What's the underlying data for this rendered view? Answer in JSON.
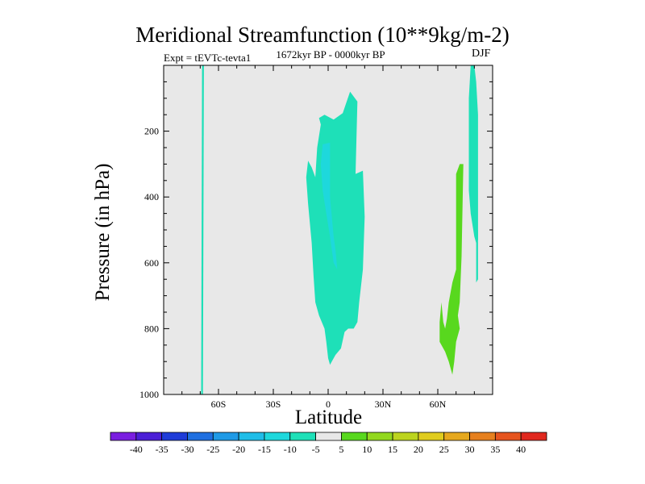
{
  "chart_data": {
    "type": "contour",
    "title": "Meridional Streamfunction (10**9kg/m-2)",
    "subtitle": "1672kyr BP - 0000kyr BP",
    "experiment": "Expt = tEVTc-tevta1",
    "season": "DJF",
    "xlabel": "Latitude",
    "ylabel": "Pressure (in hPa)",
    "xlim": [
      -90,
      90
    ],
    "ylim": [
      1000,
      0
    ],
    "x_ticks": [
      {
        "value": -60,
        "label": "60S"
      },
      {
        "value": -30,
        "label": "30S"
      },
      {
        "value": 0,
        "label": "0"
      },
      {
        "value": 30,
        "label": "30N"
      },
      {
        "value": 60,
        "label": "60N"
      }
    ],
    "y_ticks": [
      {
        "value": 200,
        "label": "200"
      },
      {
        "value": 400,
        "label": "400"
      },
      {
        "value": 600,
        "label": "600"
      },
      {
        "value": 800,
        "label": "800"
      },
      {
        "value": 1000,
        "label": "1000"
      }
    ],
    "colorbar": {
      "levels": [
        -40,
        -35,
        -30,
        -25,
        -20,
        -15,
        -10,
        -5,
        5,
        10,
        15,
        20,
        25,
        30,
        35,
        40
      ],
      "labels": [
        "-40",
        "-35",
        "-30",
        "-25",
        "-20",
        "-15",
        "-10",
        "-5",
        "5",
        "10",
        "15",
        "20",
        "25",
        "30",
        "35",
        "40"
      ],
      "colors": [
        "#7a1ee0",
        "#4b1fd6",
        "#1f3cd8",
        "#1f6fe0",
        "#1f9ae6",
        "#1fbde8",
        "#1ed8dc",
        "#1ee0b8",
        "#e8e8e8",
        "#58d81e",
        "#92d81e",
        "#bcd41e",
        "#e0cc1e",
        "#e6a81e",
        "#e6801e",
        "#e6541e",
        "#e0281e"
      ]
    },
    "background_color": "#e8e8e8",
    "regions": [
      {
        "name": "southern-high-latitude-cell",
        "color": "#1ee0b8",
        "points": [
          [
            -69,
            0
          ],
          [
            -68,
            0
          ],
          [
            -68.5,
            1000
          ],
          [
            -69.5,
            1000
          ]
        ]
      },
      {
        "name": "tropical-cell-outer",
        "color": "#1ee0b8",
        "points": [
          [
            -5,
            160
          ],
          [
            -2,
            150
          ],
          [
            3,
            165
          ],
          [
            8,
            145
          ],
          [
            12,
            80
          ],
          [
            16,
            110
          ],
          [
            15,
            330
          ],
          [
            19,
            320
          ],
          [
            20,
            460
          ],
          [
            19,
            620
          ],
          [
            17,
            720
          ],
          [
            16,
            780
          ],
          [
            14,
            800
          ],
          [
            11,
            800
          ],
          [
            9,
            810
          ],
          [
            7,
            860
          ],
          [
            4,
            880
          ],
          [
            2,
            900
          ],
          [
            1,
            910
          ],
          [
            0,
            890
          ],
          [
            -1,
            840
          ],
          [
            -2,
            800
          ],
          [
            -5,
            760
          ],
          [
            -7,
            720
          ],
          [
            -8,
            640
          ],
          [
            -9,
            540
          ],
          [
            -11,
            420
          ],
          [
            -12,
            340
          ],
          [
            -11,
            290
          ],
          [
            -9,
            310
          ],
          [
            -7,
            340
          ],
          [
            -6,
            250
          ],
          [
            -4,
            180
          ]
        ]
      },
      {
        "name": "tropical-cell-inner",
        "color": "#1ed8dc",
        "points": [
          [
            -3,
            240
          ],
          [
            1,
            235
          ],
          [
            1,
            400
          ],
          [
            3,
            520
          ],
          [
            4,
            560
          ],
          [
            5,
            620
          ],
          [
            3,
            600
          ],
          [
            1,
            520
          ],
          [
            -1,
            450
          ],
          [
            -3,
            380
          ],
          [
            -4,
            300
          ]
        ]
      },
      {
        "name": "northern-subtropical-cell",
        "color": "#58d81e",
        "points": [
          [
            70,
            330
          ],
          [
            72,
            300
          ],
          [
            74,
            300
          ],
          [
            73,
            580
          ],
          [
            72,
            720
          ],
          [
            71,
            760
          ],
          [
            72,
            800
          ],
          [
            70,
            840
          ],
          [
            69,
            900
          ],
          [
            68,
            940
          ],
          [
            66,
            900
          ],
          [
            64,
            870
          ],
          [
            61,
            840
          ],
          [
            61,
            780
          ],
          [
            62,
            720
          ],
          [
            63,
            780
          ],
          [
            64,
            800
          ],
          [
            65,
            770
          ],
          [
            66,
            720
          ],
          [
            68,
            660
          ],
          [
            70,
            620
          ],
          [
            70,
            500
          ]
        ]
      },
      {
        "name": "northern-high-latitude-cell",
        "color": "#1ee0b8",
        "points": [
          [
            78,
            0
          ],
          [
            80,
            0
          ],
          [
            81,
            50
          ],
          [
            82,
            150
          ],
          [
            82,
            420
          ],
          [
            82,
            530
          ],
          [
            81,
            540
          ],
          [
            80,
            520
          ],
          [
            78,
            450
          ],
          [
            77,
            380
          ],
          [
            77,
            200
          ],
          [
            77,
            100
          ]
        ]
      },
      {
        "name": "northern-high-latitude-cell-tail",
        "color": "#1ee0b8",
        "points": [
          [
            81,
            500
          ],
          [
            82,
            500
          ],
          [
            82,
            650
          ],
          [
            81,
            660
          ]
        ]
      }
    ]
  }
}
